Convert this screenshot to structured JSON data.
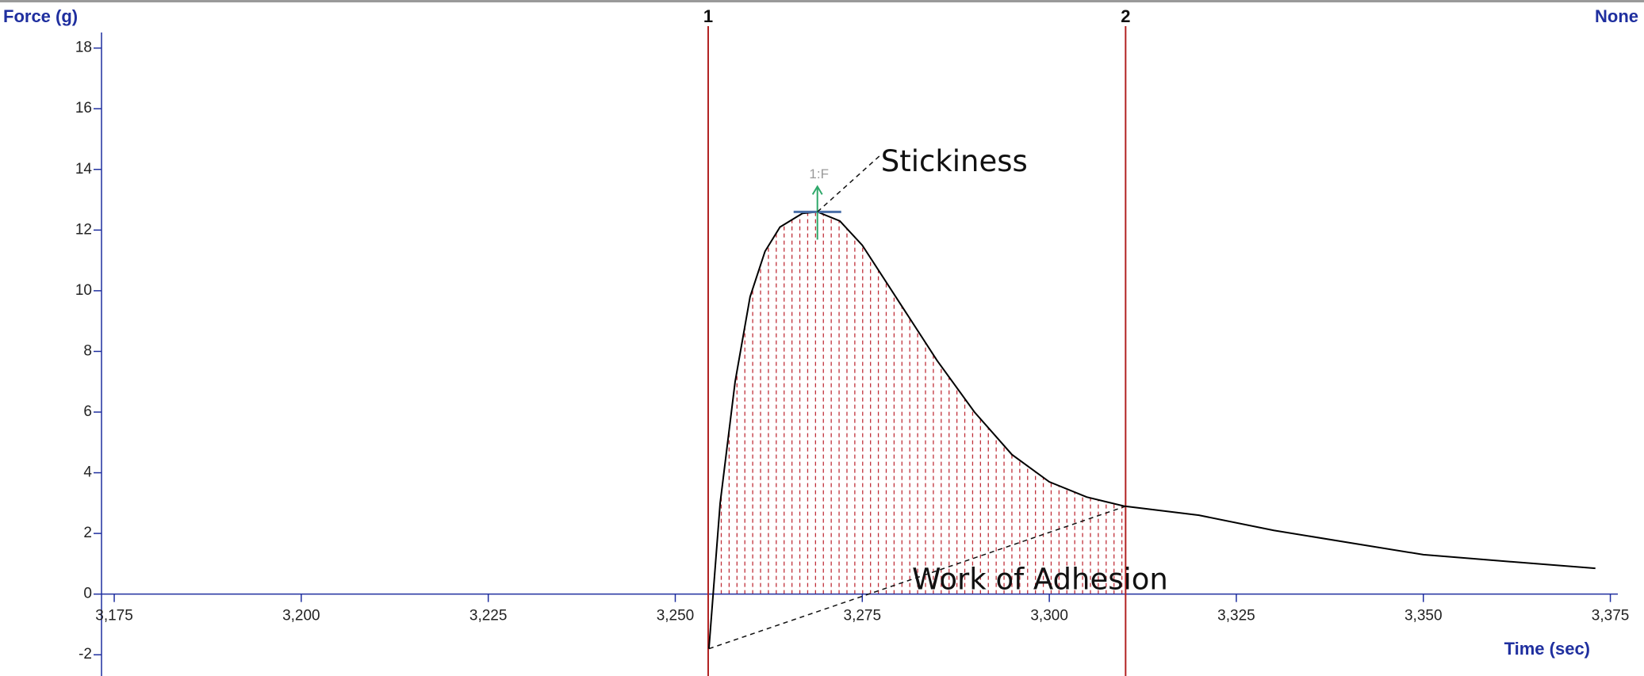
{
  "chart_data": {
    "type": "line",
    "y_label": "Force (g)",
    "x_label": "Time (sec)",
    "top_right_label": "None",
    "x": [
      3254.5,
      3256,
      3258,
      3260,
      3262,
      3264,
      3267,
      3269,
      3272,
      3275,
      3280,
      3285,
      3290,
      3295,
      3300,
      3305,
      3310,
      3320,
      3330,
      3340,
      3350,
      3360,
      3373
    ],
    "series": [
      {
        "color": "#000000",
        "values": [
          -1.8,
          3,
          7,
          9.8,
          11.3,
          12.1,
          12.55,
          12.6,
          12.3,
          11.5,
          9.6,
          7.7,
          6,
          4.6,
          3.7,
          3.2,
          2.9,
          2.6,
          2.1,
          1.7,
          1.3,
          1.1,
          0.85
        ]
      }
    ],
    "xlim": [
      3173.3,
      3376
    ],
    "ylim": [
      -2.7,
      18.2
    ],
    "xticks": [
      {
        "value": 3175,
        "label": "3,175"
      },
      {
        "value": 3200,
        "label": "3,200"
      },
      {
        "value": 3225,
        "label": "3,225"
      },
      {
        "value": 3250,
        "label": "3,250"
      },
      {
        "value": 3275,
        "label": "3,275"
      },
      {
        "value": 3300,
        "label": "3,300"
      },
      {
        "value": 3325,
        "label": "3,325"
      },
      {
        "value": 3350,
        "label": "3,350"
      },
      {
        "value": 3375,
        "label": "3,375"
      }
    ],
    "yticks": [
      -2,
      0,
      2,
      4,
      6,
      8,
      10,
      12,
      14,
      16,
      18
    ],
    "markers": [
      {
        "label": "1",
        "x": 3254.4,
        "color": "#b22222"
      },
      {
        "label": "2",
        "x": 3310.2,
        "color": "#b22222"
      }
    ],
    "peak": {
      "label": "1:F",
      "x": 3269,
      "y": 12.6
    },
    "annotations": {
      "peak": "Stickiness",
      "area": "Work of Adhesion"
    },
    "area_color": "#c0303a"
  }
}
